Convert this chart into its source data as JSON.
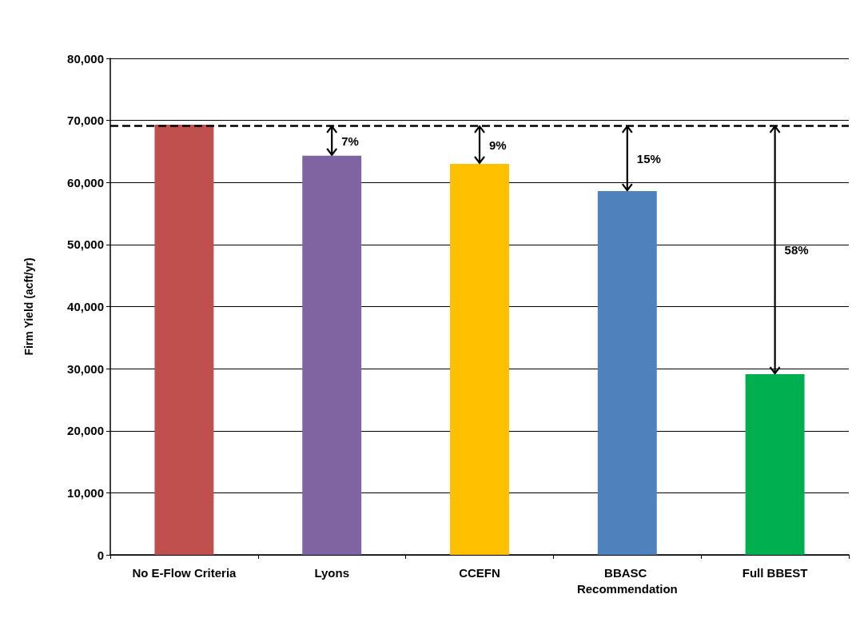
{
  "chart_data": {
    "type": "bar",
    "ylabel": "Firm Yield (acft/yr)",
    "categories": [
      "No E-Flow Criteria",
      "Lyons",
      "CCEFN",
      "BBASC Recommendation",
      "Full BBEST"
    ],
    "values": [
      69300,
      64300,
      63000,
      58600,
      29100
    ],
    "colors": [
      "#c0504d",
      "#8064a2",
      "#ffc000",
      "#4f81bd",
      "#00b050"
    ],
    "ylim": [
      0,
      80000
    ],
    "yticks": [
      {
        "value": 0,
        "label": "0"
      },
      {
        "value": 10000,
        "label": "10,000"
      },
      {
        "value": 20000,
        "label": "20,000"
      },
      {
        "value": 30000,
        "label": "30,000"
      },
      {
        "value": 40000,
        "label": "40,000"
      },
      {
        "value": 50000,
        "label": "50,000"
      },
      {
        "value": 60000,
        "label": "60,000"
      },
      {
        "value": 70000,
        "label": "70,000"
      },
      {
        "value": 80000,
        "label": "80,000"
      }
    ],
    "grid": "y",
    "ref_lines": [
      {
        "axis": "y",
        "value": 69200,
        "color": "#000000",
        "line_style": "dashed"
      }
    ],
    "annotations": [
      "7%",
      "9%",
      "15%",
      "58%"
    ]
  }
}
